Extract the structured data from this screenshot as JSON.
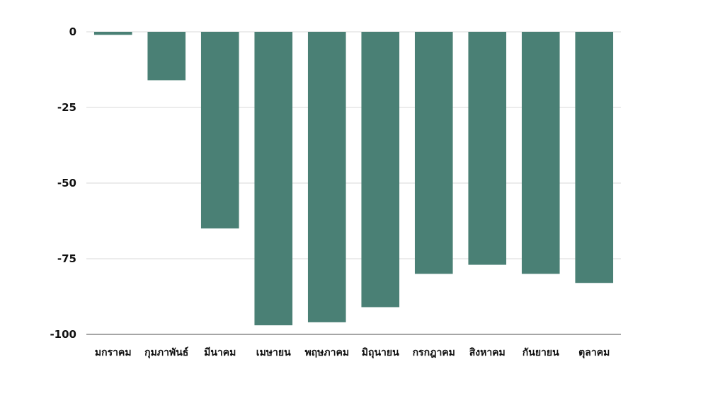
{
  "chart_data": {
    "type": "bar",
    "title": "",
    "xlabel": "",
    "ylabel": "",
    "ylim": [
      -100,
      0
    ],
    "yticks": [
      0,
      -25,
      -50,
      -75,
      -100
    ],
    "yticks_labels": [
      "0",
      "-25",
      "-50",
      "-75",
      "-100"
    ],
    "grid": true,
    "categories": [
      "มกราคม",
      "กุมภาพันธ์",
      "มีนาคม",
      "เมษายน",
      "พฤษภาคม",
      "มิถุนายน",
      "กรกฎาคม",
      "สิงหาคม",
      "กันยายน",
      "ตุลาคม"
    ],
    "values": [
      -1,
      -16,
      -65,
      -97,
      -96,
      -91,
      -80,
      -77,
      -80,
      -83
    ],
    "bar_color": "#4a8075",
    "grid_color": "#d9d9d9",
    "axis_color": "#888888"
  }
}
